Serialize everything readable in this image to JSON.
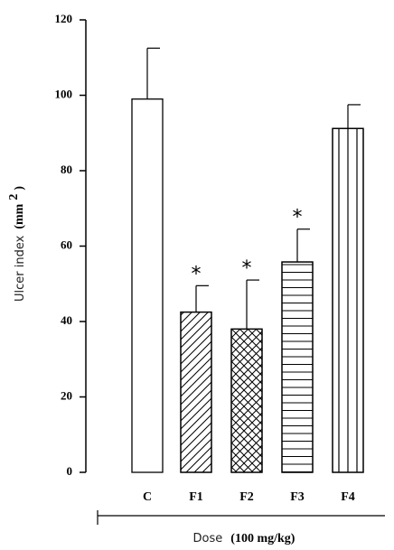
{
  "chart_data": {
    "type": "bar",
    "categories": [
      "C",
      "F1",
      "F2",
      "F3",
      "F4"
    ],
    "values": [
      99,
      42.5,
      38,
      55.8,
      91.2
    ],
    "error_upper": [
      112.5,
      49.5,
      51,
      64.5,
      97.5
    ],
    "patterns": [
      "none",
      "diagonal",
      "crosshatch",
      "horizontal",
      "vertical"
    ],
    "annotations": [
      "",
      "*",
      "*",
      "*",
      ""
    ],
    "yticks": [
      0,
      20,
      40,
      60,
      80,
      100,
      120
    ],
    "ylim": [
      0,
      120
    ],
    "ylabel_main": "Ulcer index",
    "ylabel_unit": "(mm",
    "ylabel_sup": "2",
    "ylabel_close": ")",
    "xlabel_main": "Dose",
    "xlabel_unit": "(100 mg/kg)",
    "grid": false,
    "legend": "none",
    "colors": {
      "bar_fill": "#ffffff",
      "stroke": "#000000"
    }
  }
}
